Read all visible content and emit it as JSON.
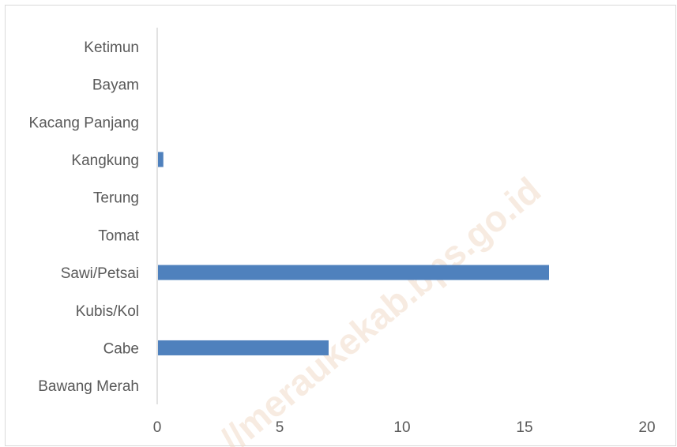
{
  "chart_data": {
    "type": "bar",
    "orientation": "horizontal",
    "categories": [
      "Ketimun",
      "Bayam",
      "Kacang Panjang",
      "Kangkung",
      "Terung",
      "Tomat",
      "Sawi/Petsai",
      "Kubis/Kol",
      "Cabe",
      "Bawang Merah"
    ],
    "values": [
      0,
      0,
      0,
      0.25,
      0,
      0,
      16,
      0,
      7,
      0
    ],
    "xlim": [
      0,
      20
    ],
    "xticks": [
      "0",
      "5",
      "10",
      "15",
      "20"
    ],
    "bar_color": "#4f81bd",
    "grid": false,
    "legend": "none"
  },
  "watermark": "//meraukekab.bps.go.id"
}
